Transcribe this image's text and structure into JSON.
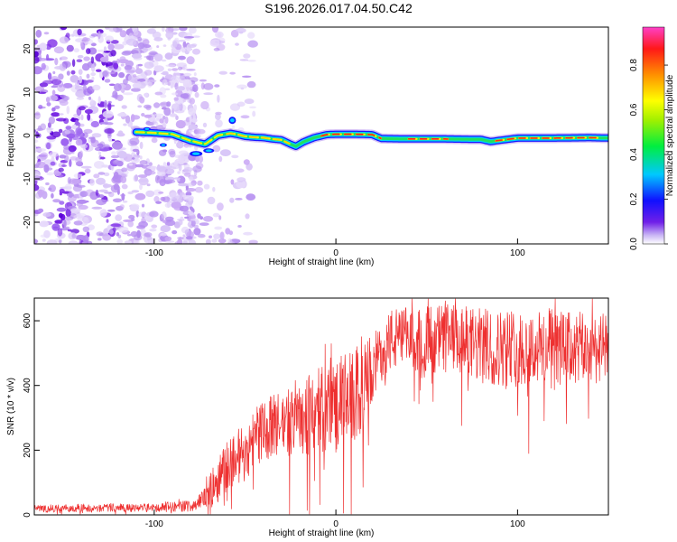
{
  "title": "S196.2026.017.04.50.C42",
  "colors": {
    "snr_line": "#ee3030",
    "axis": "#000000"
  },
  "chart_data": [
    {
      "type": "heatmap",
      "title": "",
      "xlabel": "Height of straight line (km)",
      "ylabel": "Frequency (Hz)",
      "xlim": [
        -166,
        150
      ],
      "ylim": [
        -25,
        25
      ],
      "xticks": [
        -100,
        0,
        100
      ],
      "yticks": [
        -20,
        -10,
        0,
        10,
        20
      ],
      "grid": false,
      "signal_track": {
        "description_of_values": "centre frequency of strong signal vs height",
        "x": [
          -110,
          -100,
          -90,
          -80,
          -72,
          -65,
          -58,
          -55,
          -50,
          -45,
          -40,
          -35,
          -30,
          -25,
          -22,
          -18,
          -12,
          -5,
          0,
          10,
          20,
          25,
          40,
          60,
          80,
          85,
          100,
          120,
          140,
          150
        ],
        "y": [
          0.8,
          0.6,
          0.3,
          -1.2,
          -2.0,
          0.0,
          0.5,
          0.3,
          -0.2,
          -0.4,
          -0.5,
          -0.8,
          -1.0,
          -2.0,
          -2.5,
          -1.5,
          -0.5,
          0.2,
          0.3,
          0.3,
          0.2,
          -0.7,
          -0.8,
          -0.8,
          -0.9,
          -1.4,
          -0.6,
          -0.6,
          -0.5,
          -0.6
        ]
      },
      "colorbar": {
        "label": "Normalized spectral amplitude",
        "range": [
          0,
          0.97
        ],
        "ticks": [
          "0.0",
          "0.2",
          "0.4",
          "0.6",
          "0.8"
        ],
        "tick_values": [
          0.0,
          0.2,
          0.4,
          0.6,
          0.8
        ]
      }
    },
    {
      "type": "line",
      "title": "",
      "xlabel": "Height of straight line (km)",
      "ylabel": "SNR (10 * v/v)",
      "xlim": [
        -166,
        150
      ],
      "ylim": [
        0,
        670
      ],
      "xticks": [
        -100,
        0,
        100
      ],
      "yticks": [
        0,
        200,
        400,
        600
      ],
      "grid": false,
      "series": [
        {
          "name": "SNR",
          "envelope_x": [
            -166,
            -100,
            -80,
            -75,
            -70,
            -65,
            -60,
            -55,
            -50,
            -45,
            -40,
            -35,
            -30,
            -20,
            -10,
            0,
            10,
            15,
            20,
            25,
            30,
            40,
            60,
            80,
            100,
            120,
            140,
            150
          ],
          "envelope_mean": [
            20,
            22,
            28,
            40,
            70,
            110,
            150,
            180,
            190,
            240,
            260,
            270,
            280,
            310,
            320,
            340,
            360,
            390,
            450,
            500,
            540,
            545,
            545,
            520,
            515,
            515,
            515,
            515
          ],
          "envelope_spread": [
            12,
            14,
            18,
            25,
            45,
            70,
            80,
            90,
            90,
            90,
            95,
            100,
            110,
            130,
            140,
            150,
            150,
            140,
            110,
            90,
            100,
            100,
            110,
            120,
            120,
            120,
            110,
            110
          ]
        }
      ]
    }
  ]
}
